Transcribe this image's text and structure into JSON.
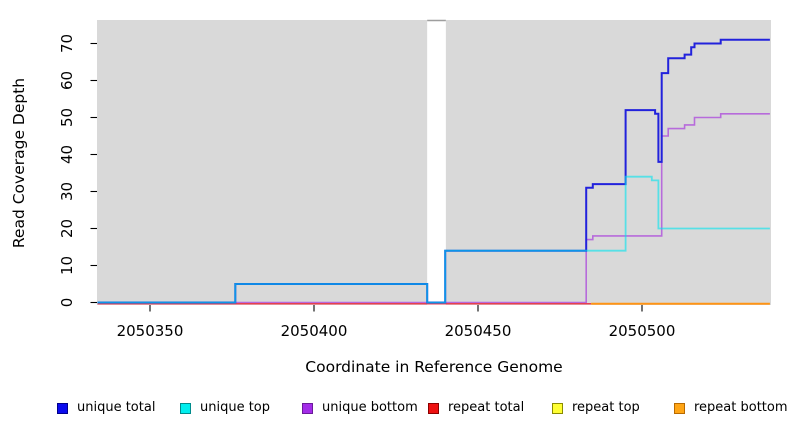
{
  "figure": {
    "x_axis_title": "Coordinate in Reference Genome",
    "y_axis_title": "Read Coverage Depth"
  },
  "legend": {
    "items": [
      {
        "name": "unique-total",
        "label": "unique total",
        "fill": "#0b0bee",
        "border": "#00008b"
      },
      {
        "name": "unique-top",
        "label": "unique top",
        "fill": "#00eeee",
        "border": "#008b8b"
      },
      {
        "name": "unique-bottom",
        "label": "unique bottom",
        "fill": "#a32ce8",
        "border": "#6a1b9a"
      },
      {
        "name": "repeat-total",
        "label": "repeat total",
        "fill": "#ee1111",
        "border": "#8b0000"
      },
      {
        "name": "repeat-top",
        "label": "repeat top",
        "fill": "#ffff33",
        "border": "#8b8b00"
      },
      {
        "name": "repeat-bottom",
        "label": "repeat bottom",
        "fill": "#ffa515",
        "border": "#b86a00"
      }
    ]
  },
  "chart_data": {
    "type": "line",
    "subtype": "step-coverage",
    "title": "",
    "xlabel": "Coordinate in Reference Genome",
    "ylabel": "Read Coverage Depth",
    "xlim": [
      2050334,
      2050539
    ],
    "ylim": [
      0,
      76.5
    ],
    "x_ticks": [
      2050350,
      2050400,
      2050450,
      2050500
    ],
    "y_ticks": [
      0,
      10,
      20,
      30,
      40,
      50,
      60,
      70
    ],
    "grid": false,
    "plot_background": "#d9d9d9",
    "gap_region": {
      "x_start": 2050434.5,
      "x_end": 2050440.2,
      "note_color": "#9e9e9e"
    },
    "legend_position": "bottom",
    "series": [
      {
        "name": "repeat top",
        "color": "#ffff33",
        "width": 1.5,
        "opacity": 1,
        "points": [
          [
            2050334,
            0
          ]
        ],
        "x_end": 2050539
      },
      {
        "name": "unique bottom",
        "color": "#b76bdb",
        "width": 1.6,
        "opacity": 1,
        "points": [
          [
            2050334,
            0
          ],
          [
            2050483,
            17
          ],
          [
            2050485,
            18
          ],
          [
            2050506,
            45
          ],
          [
            2050508,
            47
          ],
          [
            2050513,
            48
          ],
          [
            2050516,
            50
          ],
          [
            2050524,
            51
          ]
        ],
        "x_end": 2050539
      },
      {
        "name": "repeat total",
        "color": "#e8404f",
        "width": 1.5,
        "opacity": 1,
        "points": [
          [
            2050334,
            0
          ]
        ],
        "x_end": 2050484.5
      },
      {
        "name": "repeat bottom",
        "color": "#ff9415",
        "width": 2,
        "opacity": 1,
        "points": [
          [
            2050484.5,
            0
          ]
        ],
        "x_end": 2050539
      },
      {
        "name": "unique total",
        "color": "#2222dc",
        "width": 2,
        "opacity": 1,
        "points": [
          [
            2050334,
            0
          ],
          [
            2050376,
            5
          ],
          [
            2050434.5,
            0
          ],
          [
            2050440,
            14
          ],
          [
            2050483,
            31
          ],
          [
            2050485,
            32
          ],
          [
            2050495,
            52
          ],
          [
            2050504,
            51
          ],
          [
            2050505,
            38
          ],
          [
            2050506,
            62
          ],
          [
            2050508,
            66
          ],
          [
            2050513,
            67
          ],
          [
            2050515,
            69
          ],
          [
            2050516,
            70
          ],
          [
            2050524,
            71
          ]
        ],
        "x_end": 2050539
      },
      {
        "name": "unique top",
        "color": "#00e5ee",
        "width": 1.8,
        "opacity": 0.6,
        "points": [
          [
            2050334,
            0
          ],
          [
            2050376,
            5
          ],
          [
            2050434.5,
            0
          ],
          [
            2050440,
            14
          ],
          [
            2050495,
            34
          ],
          [
            2050503,
            33
          ],
          [
            2050505,
            20
          ]
        ],
        "x_end": 2050539
      }
    ]
  }
}
